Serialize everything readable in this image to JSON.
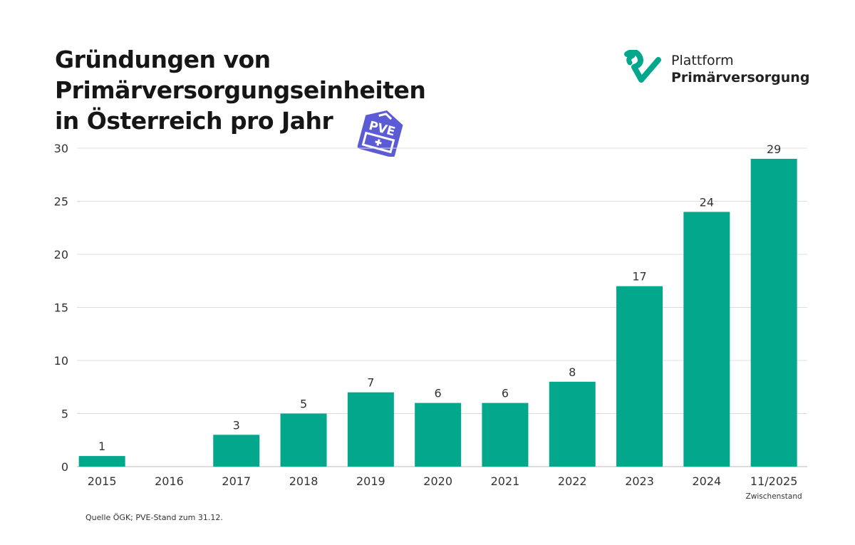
{
  "title": {
    "line1": "Gründungen von",
    "line2": "Primärversorgungseinheiten",
    "line3a": "in Österreich ",
    "line3b": "pro Jahr"
  },
  "badge": {
    "text": "PVE",
    "color": "#5b5bd6"
  },
  "brand": {
    "line1": "Plattform",
    "line2": "Primärversorgung",
    "color": "#03a88c"
  },
  "source": "Quelle ÖGK; PVE-Stand zum 31.12.",
  "chart_data": {
    "type": "bar",
    "title": "Gründungen von Primärversorgungseinheiten in Österreich pro Jahr",
    "categories": [
      "2015",
      "2016",
      "2017",
      "2018",
      "2019",
      "2020",
      "2021",
      "2022",
      "2023",
      "2024",
      "11/2025"
    ],
    "category_note": {
      "index": 10,
      "text": "Zwischenstand"
    },
    "values": [
      1,
      0,
      3,
      5,
      7,
      6,
      6,
      8,
      17,
      24,
      29
    ],
    "data_labels": [
      "1",
      "",
      "3",
      "5",
      "7",
      "6",
      "6",
      "8",
      "17",
      "24",
      "29"
    ],
    "ylim": [
      0,
      30
    ],
    "yticks": [
      0,
      5,
      10,
      15,
      20,
      25,
      30
    ],
    "grid": true,
    "xlabel": "",
    "ylabel": "",
    "bar_color": "#03a88c"
  }
}
